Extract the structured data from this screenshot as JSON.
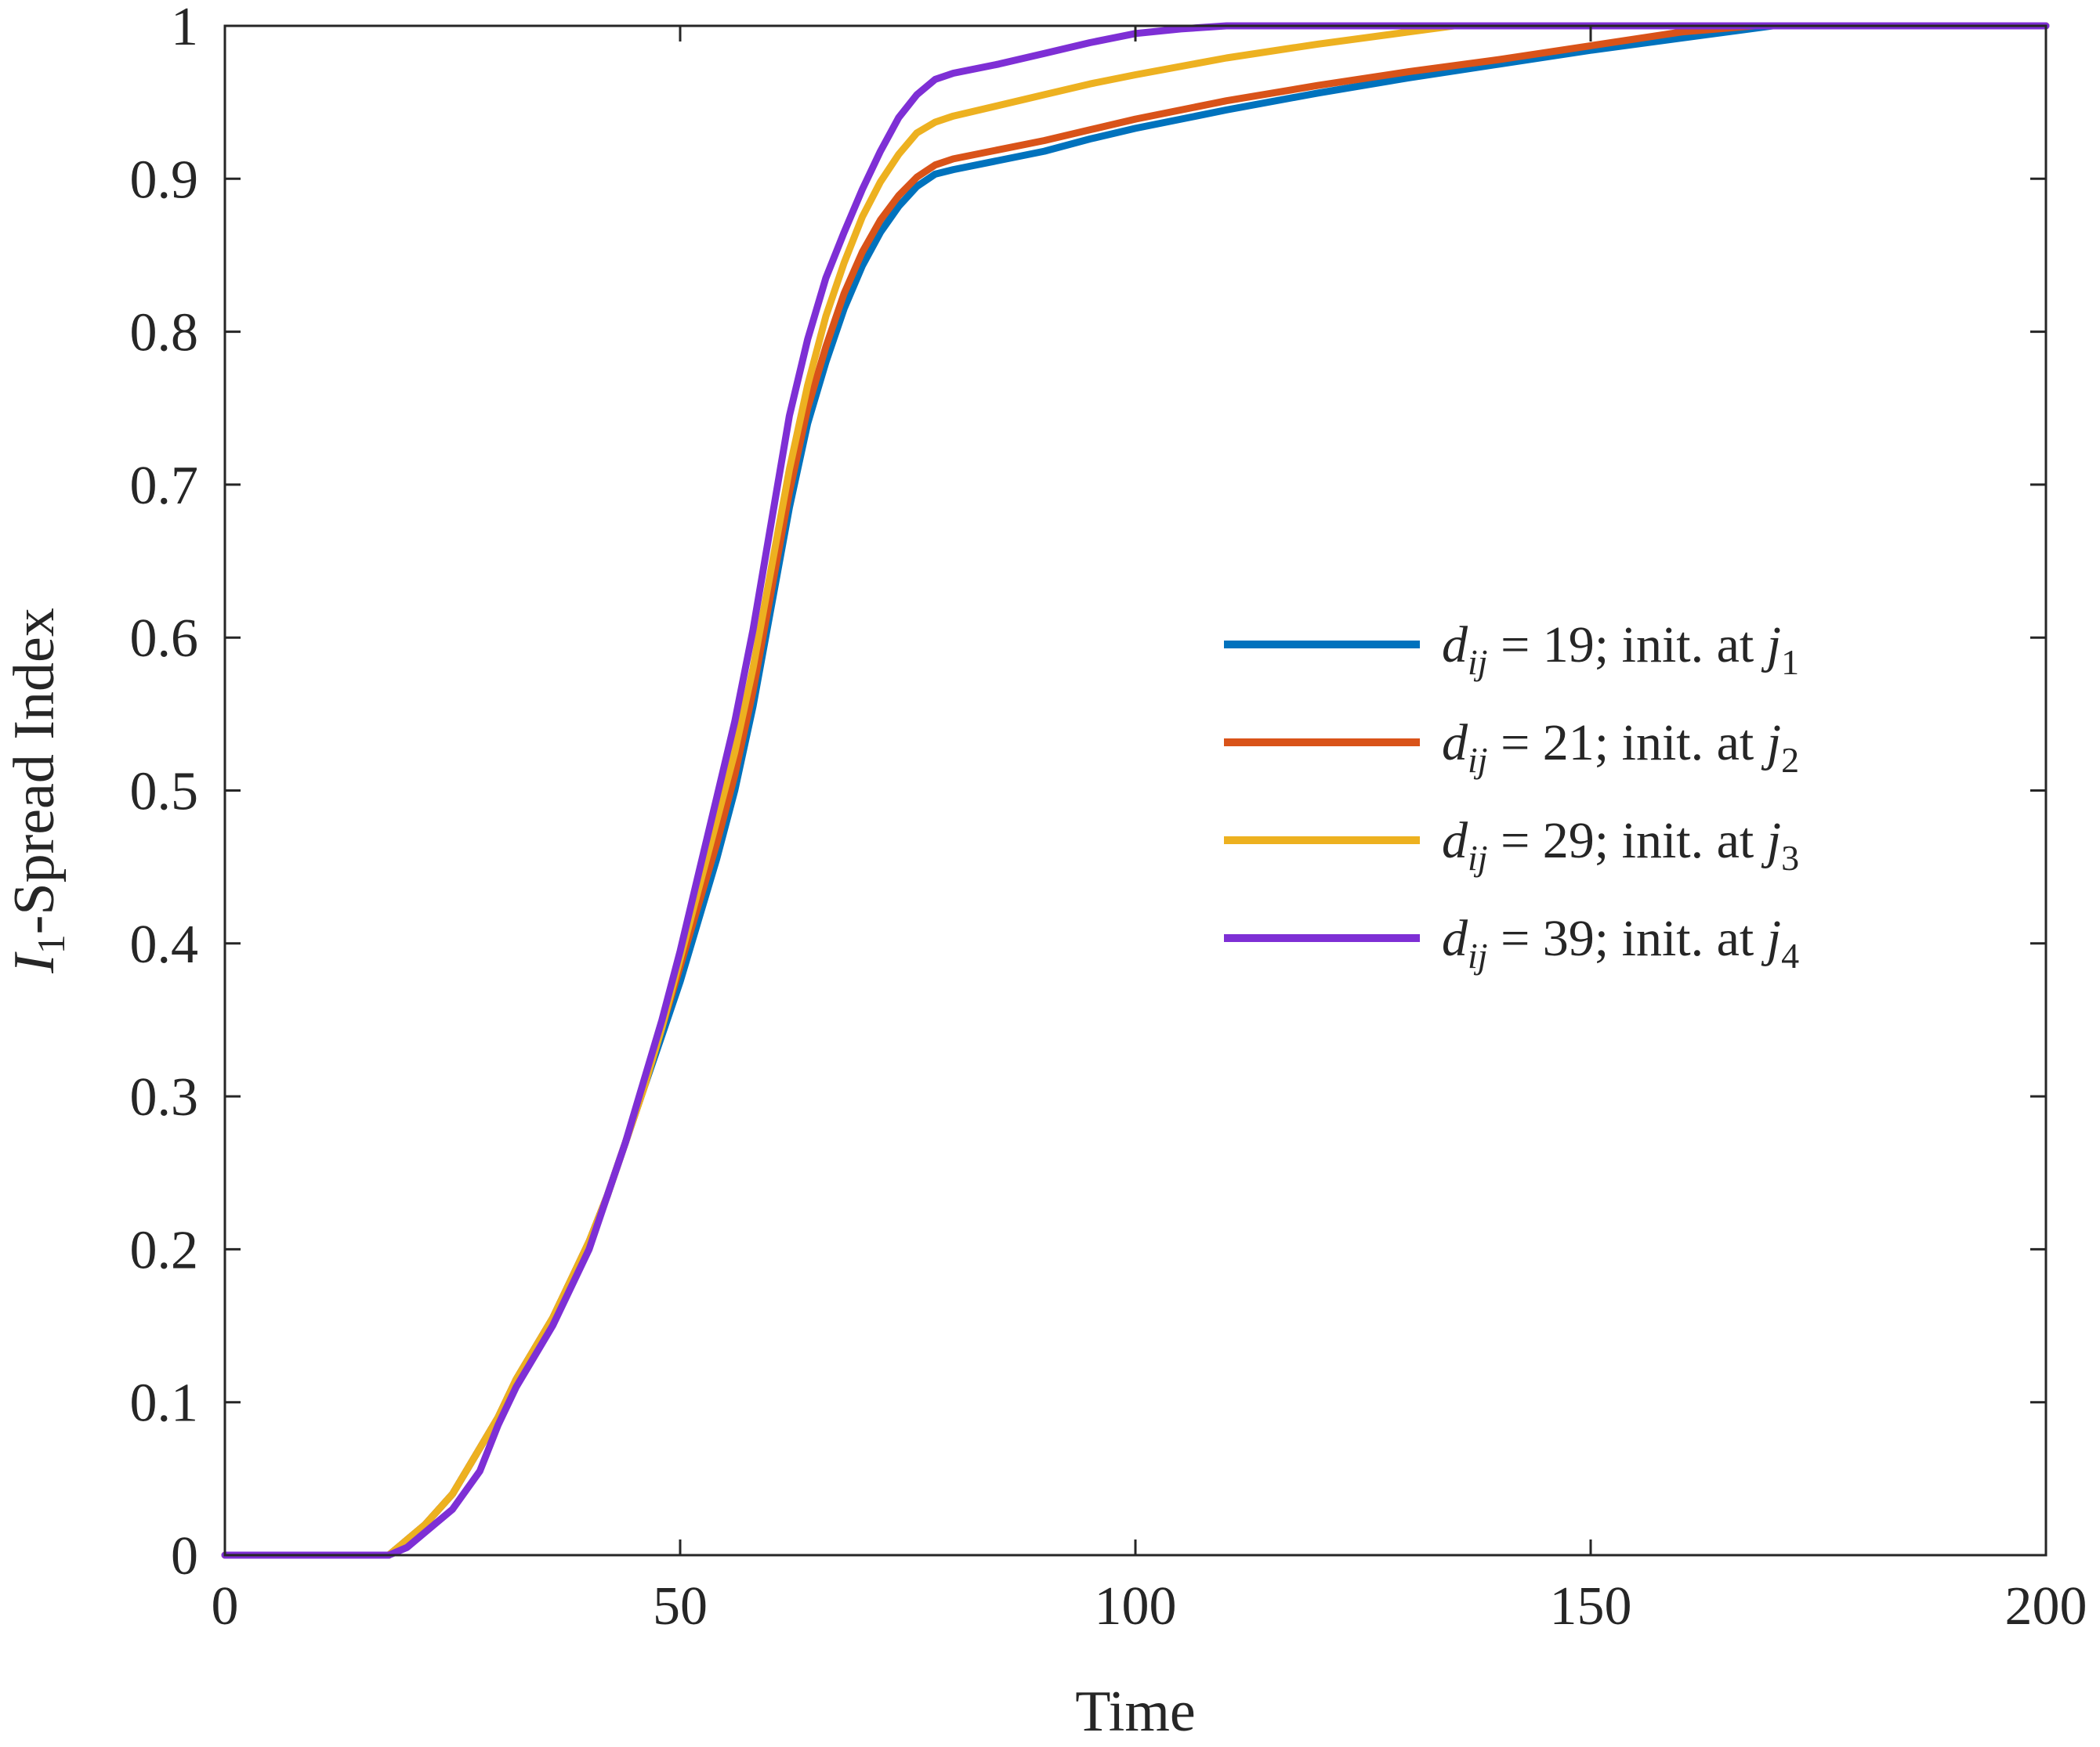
{
  "chart_data": {
    "type": "line",
    "title": "",
    "xlabel": "Time",
    "ylabel": {
      "var": "I",
      "sub": "1",
      "rest": "-Spread Index"
    },
    "xlim": [
      0,
      200
    ],
    "ylim": [
      0,
      1
    ],
    "xticks": [
      0,
      50,
      100,
      150,
      200
    ],
    "xtick_labels": [
      "0",
      "50",
      "100",
      "150",
      "200"
    ],
    "yticks": [
      0,
      0.1,
      0.2,
      0.3,
      0.4,
      0.5,
      0.6,
      0.7,
      0.8,
      0.9,
      1
    ],
    "ytick_labels": [
      "0",
      "0.1",
      "0.2",
      "0.3",
      "0.4",
      "0.5",
      "0.6",
      "0.7",
      "0.8",
      "0.9",
      "1"
    ],
    "grid": false,
    "legend_position": "center-right",
    "series": [
      {
        "name": "d_ij = 19; init. at j_1",
        "label": {
          "var": "d",
          "sub": "ij",
          "mid": " = 19; init. at ",
          "var2": "j",
          "sub2": "1"
        },
        "color": "#0072BD",
        "x": [
          0,
          4,
          18,
          20,
          22,
          25,
          28,
          30,
          32,
          34,
          36,
          38,
          40,
          42,
          44,
          46,
          48,
          50,
          52,
          54,
          56,
          58,
          60,
          62,
          64,
          66,
          68,
          70,
          72,
          74,
          76,
          78,
          80,
          85,
          90,
          95,
          100,
          110,
          120,
          130,
          140,
          150,
          160,
          170,
          180,
          200
        ],
        "y": [
          0,
          0,
          0,
          0.01,
          0.02,
          0.04,
          0.07,
          0.09,
          0.115,
          0.135,
          0.155,
          0.18,
          0.205,
          0.235,
          0.27,
          0.305,
          0.34,
          0.375,
          0.415,
          0.455,
          0.5,
          0.555,
          0.62,
          0.685,
          0.74,
          0.78,
          0.815,
          0.843,
          0.865,
          0.882,
          0.895,
          0.903,
          0.906,
          0.912,
          0.918,
          0.926,
          0.933,
          0.945,
          0.956,
          0.966,
          0.975,
          0.984,
          0.992,
          1.0,
          1.0,
          1.0
        ]
      },
      {
        "name": "d_ij = 21; init. at j_2",
        "label": {
          "var": "d",
          "sub": "ij",
          "mid": " = 21; init. at ",
          "var2": "j",
          "sub2": "2"
        },
        "color": "#D95319",
        "x": [
          0,
          4,
          18,
          20,
          22,
          25,
          28,
          30,
          32,
          34,
          36,
          38,
          40,
          42,
          44,
          46,
          48,
          50,
          52,
          54,
          56,
          58,
          60,
          62,
          64,
          66,
          68,
          70,
          72,
          74,
          76,
          78,
          80,
          85,
          90,
          95,
          100,
          110,
          120,
          130,
          140,
          150,
          160,
          168,
          180,
          200
        ],
        "y": [
          0,
          0,
          0,
          0.01,
          0.02,
          0.04,
          0.07,
          0.09,
          0.115,
          0.135,
          0.155,
          0.18,
          0.205,
          0.235,
          0.27,
          0.305,
          0.345,
          0.385,
          0.425,
          0.465,
          0.51,
          0.565,
          0.63,
          0.695,
          0.75,
          0.79,
          0.825,
          0.852,
          0.873,
          0.889,
          0.901,
          0.909,
          0.913,
          0.919,
          0.925,
          0.932,
          0.939,
          0.951,
          0.961,
          0.97,
          0.978,
          0.987,
          0.996,
          1.0,
          1.0,
          1.0
        ]
      },
      {
        "name": "d_ij = 29; init. at j_3",
        "label": {
          "var": "d",
          "sub": "ij",
          "mid": " = 29; init. at ",
          "var2": "j",
          "sub2": "3"
        },
        "color": "#EDB120",
        "x": [
          0,
          4,
          18,
          20,
          22,
          25,
          28,
          30,
          32,
          34,
          36,
          38,
          40,
          42,
          44,
          46,
          48,
          50,
          52,
          54,
          56,
          58,
          60,
          62,
          64,
          66,
          68,
          70,
          72,
          74,
          76,
          78,
          80,
          85,
          90,
          95,
          100,
          110,
          120,
          130,
          135,
          150,
          200
        ],
        "y": [
          0,
          0,
          0,
          0.01,
          0.02,
          0.04,
          0.07,
          0.09,
          0.115,
          0.135,
          0.155,
          0.18,
          0.205,
          0.235,
          0.27,
          0.305,
          0.345,
          0.39,
          0.435,
          0.48,
          0.525,
          0.58,
          0.645,
          0.71,
          0.765,
          0.81,
          0.845,
          0.875,
          0.898,
          0.916,
          0.93,
          0.937,
          0.941,
          0.948,
          0.955,
          0.962,
          0.968,
          0.979,
          0.988,
          0.996,
          1.0,
          1.0,
          1.0
        ]
      },
      {
        "name": "d_ij = 39; init. at j_4",
        "label": {
          "var": "d",
          "sub": "ij",
          "mid": " = 39; init. at ",
          "var2": "j",
          "sub2": "4"
        },
        "color": "#7E2FD5",
        "x": [
          0,
          4,
          18,
          20,
          22,
          25,
          28,
          30,
          32,
          34,
          36,
          38,
          40,
          42,
          44,
          46,
          48,
          50,
          52,
          54,
          56,
          58,
          60,
          62,
          64,
          66,
          68,
          70,
          72,
          74,
          76,
          78,
          80,
          85,
          90,
          95,
          100,
          105,
          110,
          150,
          200
        ],
        "y": [
          0,
          0,
          0,
          0.005,
          0.015,
          0.03,
          0.055,
          0.085,
          0.11,
          0.13,
          0.15,
          0.175,
          0.2,
          0.235,
          0.27,
          0.31,
          0.35,
          0.395,
          0.445,
          0.495,
          0.545,
          0.605,
          0.675,
          0.745,
          0.795,
          0.835,
          0.865,
          0.893,
          0.918,
          0.94,
          0.955,
          0.965,
          0.969,
          0.975,
          0.982,
          0.989,
          0.995,
          0.998,
          1.0,
          1.0,
          1.0
        ]
      }
    ]
  }
}
